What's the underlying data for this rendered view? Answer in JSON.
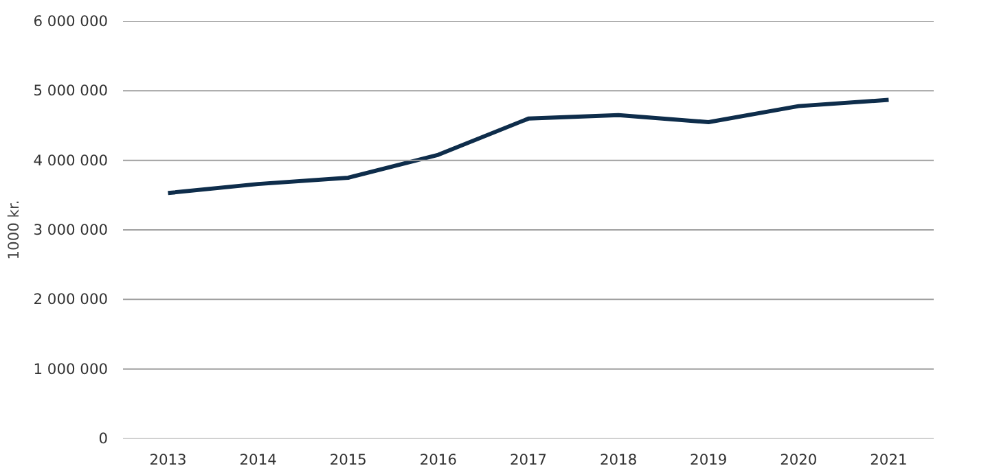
{
  "chart_data": {
    "type": "line",
    "ylabel": "1000 kr.",
    "categories": [
      "2013",
      "2014",
      "2015",
      "2016",
      "2017",
      "2018",
      "2019",
      "2020",
      "2021"
    ],
    "series": [
      {
        "color": "#0e2d4b",
        "values": [
          3530000,
          3660000,
          3750000,
          4080000,
          4600000,
          4650000,
          4550000,
          4780000,
          4870000
        ]
      }
    ],
    "ylim": [
      0,
      6000000
    ],
    "yticks": [
      0,
      {
        "value": 1000000,
        "label": "1 000 000"
      },
      {
        "value": 2000000,
        "label": "2 000 000"
      },
      {
        "value": 3000000,
        "label": "3 000 000"
      },
      {
        "value": 4000000,
        "label": "4 000 000"
      },
      {
        "value": 5000000,
        "label": "5 000 000"
      },
      {
        "value": 6000000,
        "label": "6 000 000"
      }
    ],
    "grid": "y",
    "marker": "none",
    "line_style": "solid"
  }
}
